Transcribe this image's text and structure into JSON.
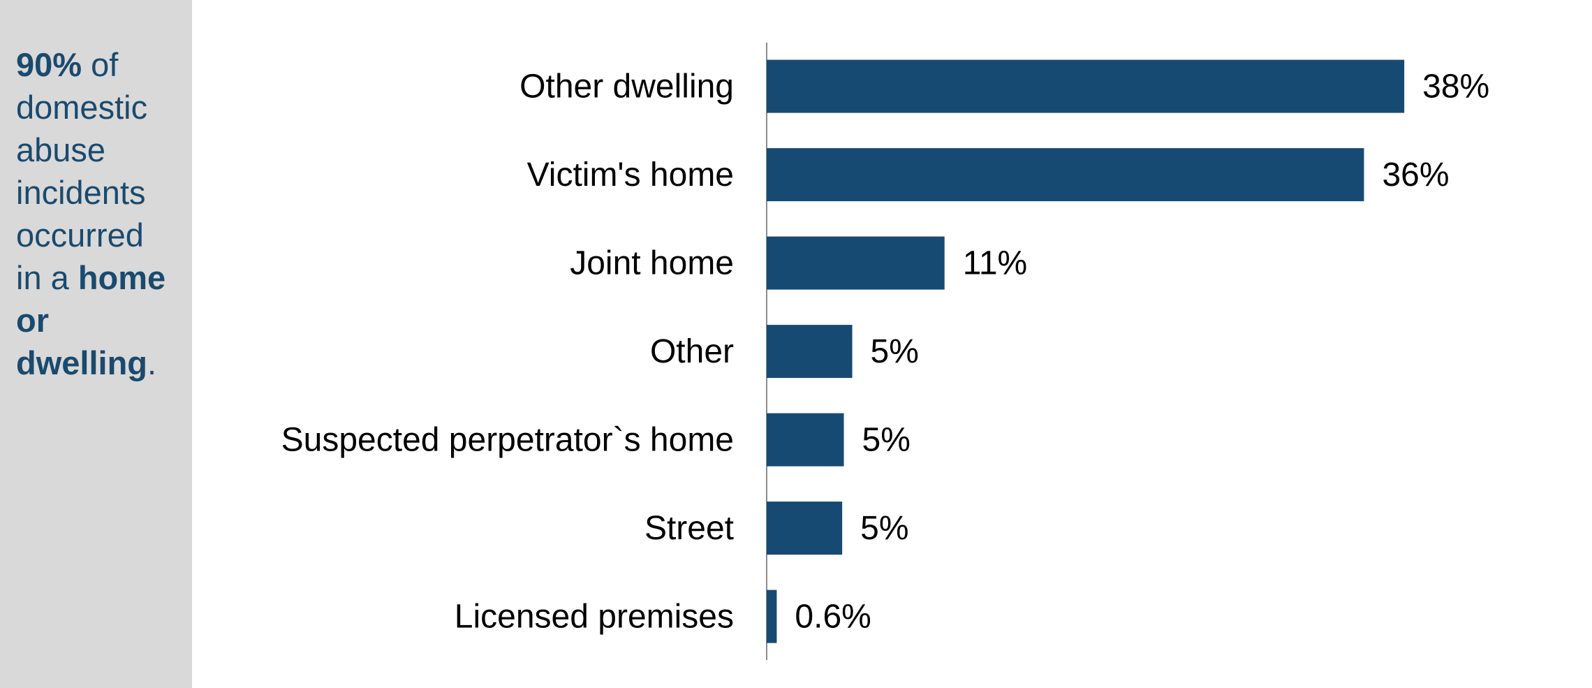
{
  "sidebar": {
    "parts": [
      "90%",
      " of domestic abuse incidents occurred in a ",
      "home or dwelling",
      "."
    ]
  },
  "chart_data": {
    "type": "bar",
    "orientation": "horizontal",
    "categories": [
      "Other dwelling",
      "Victim's home",
      "Joint home",
      "Other",
      "Suspected perpetrator`s home",
      "Street",
      "Licensed premises"
    ],
    "values": [
      38,
      35.6,
      10.6,
      5.1,
      4.6,
      4.5,
      0.6
    ],
    "value_labels": [
      "38%",
      "36%",
      "11%",
      "5%",
      "5%",
      "5%",
      "0.6%"
    ],
    "color": "#174a72",
    "xlim": [
      0,
      45
    ]
  }
}
